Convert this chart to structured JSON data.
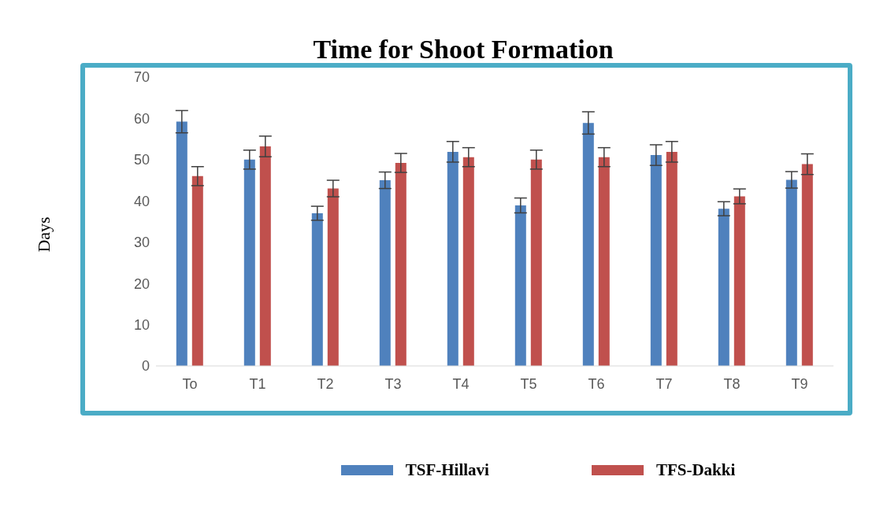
{
  "chart_data": {
    "type": "bar",
    "title": "Time for Shoot Formation",
    "ylabel": "Days",
    "categories": [
      "To",
      "T1",
      "T2",
      "T3",
      "T4",
      "T5",
      "T6",
      "T7",
      "T8",
      "T9"
    ],
    "series": [
      {
        "name": "TSF-Hillavi",
        "color": "#4f81bd",
        "values": [
          59.2,
          50,
          37,
          45,
          51.9,
          38.9,
          58.9,
          51.1,
          38.1,
          45.1
        ],
        "errors": [
          2.7,
          2.3,
          1.7,
          2,
          2.5,
          1.8,
          2.7,
          2.5,
          1.7,
          2
        ]
      },
      {
        "name": "TFS-Dakki",
        "color": "#c0504d",
        "values": [
          46,
          53.2,
          43,
          49.2,
          50.6,
          50,
          50.6,
          51.9,
          41.1,
          48.9
        ],
        "errors": [
          2.3,
          2.5,
          2,
          2.3,
          2.3,
          2.3,
          2.3,
          2.5,
          1.8,
          2.5
        ]
      }
    ],
    "ylim": [
      0,
      70
    ],
    "yticks": [
      0,
      10,
      20,
      30,
      40,
      50,
      60,
      70
    ],
    "grid": false,
    "legend": "bottom"
  }
}
